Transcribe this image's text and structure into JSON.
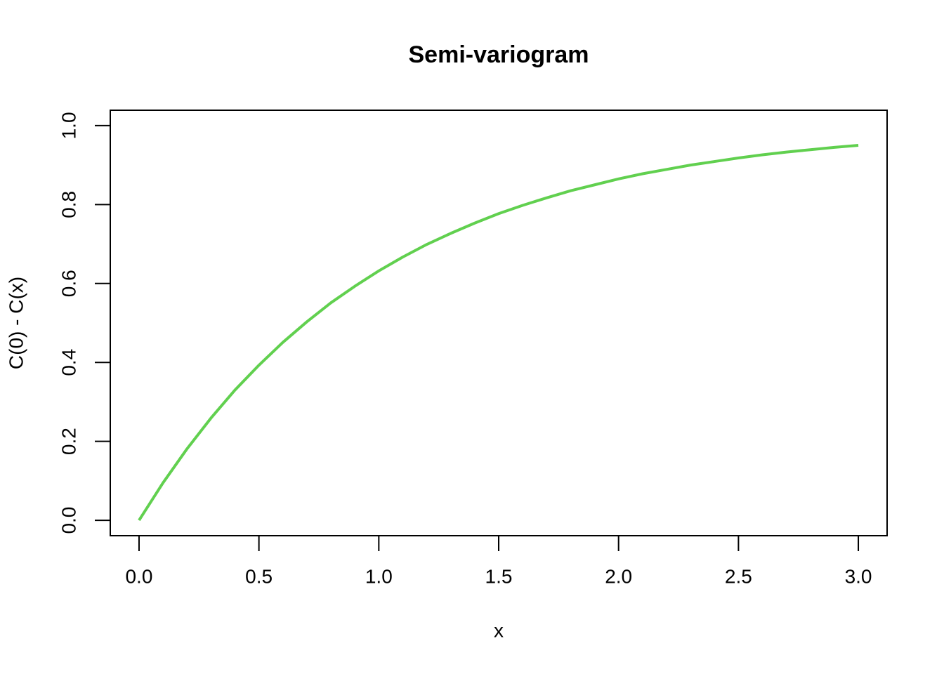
{
  "chart_data": {
    "type": "line",
    "title": "Semi-variogram",
    "x_label": "x",
    "y_label": "C(0) - C(x)",
    "x": [
      0,
      0.1,
      0.2,
      0.3,
      0.4,
      0.5,
      0.6,
      0.7,
      0.8,
      0.9,
      1.0,
      1.1,
      1.2,
      1.3,
      1.4,
      1.5,
      1.6,
      1.7,
      1.8,
      1.9,
      2.0,
      2.1,
      2.2,
      2.3,
      2.4,
      2.5,
      2.6,
      2.7,
      2.8,
      2.9,
      3.0
    ],
    "series": [
      {
        "color": "#61d04f",
        "values": [
          0,
          0.095,
          0.181,
          0.259,
          0.33,
          0.393,
          0.451,
          0.503,
          0.551,
          0.593,
          0.632,
          0.667,
          0.699,
          0.727,
          0.753,
          0.777,
          0.798,
          0.817,
          0.835,
          0.85,
          0.865,
          0.878,
          0.889,
          0.9,
          0.909,
          0.918,
          0.926,
          0.933,
          0.939,
          0.945,
          0.95
        ]
      }
    ],
    "xlim": [
      -0.12,
      3.12
    ],
    "ylim": [
      -0.039,
      1.039
    ],
    "xticks": [
      {
        "value": 0,
        "label": "0.0"
      },
      0.5,
      {
        "value": 1,
        "label": "1.0"
      },
      1.5,
      {
        "value": 2,
        "label": "2.0"
      },
      2.5,
      {
        "value": 3,
        "label": "3.0"
      }
    ],
    "yticks": [
      {
        "value": 0,
        "label": "0.0"
      },
      0.2,
      0.4,
      0.6,
      0.8,
      {
        "value": 1,
        "label": "1.0"
      }
    ]
  }
}
